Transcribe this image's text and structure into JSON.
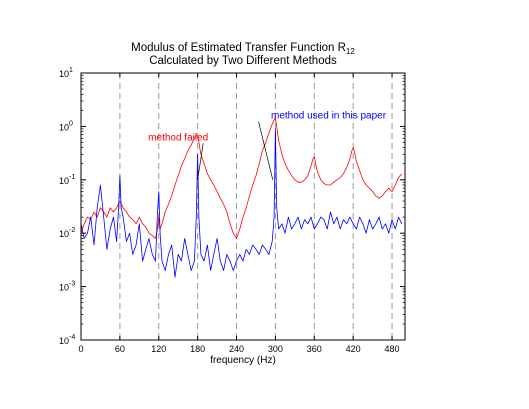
{
  "chart_data": {
    "type": "line",
    "title_line1": "Modulus of Estimated Transfer Function R",
    "title_subscript": "12",
    "title_line2": "Calculated by Two Different Methods",
    "xlabel": "frequency (Hz)",
    "ylabel": "",
    "y_scale": "log",
    "xlim": [
      0,
      500
    ],
    "ylim": [
      0.0001,
      10
    ],
    "x_ticks": [
      0,
      60,
      120,
      180,
      240,
      300,
      360,
      420,
      480
    ],
    "x_tick_labels": [
      "0",
      "60",
      "120",
      "180",
      "240",
      "300",
      "360",
      "420",
      "480"
    ],
    "y_ticks": [
      0.0001,
      0.001,
      0.01,
      0.1,
      1,
      10
    ],
    "y_tick_bases": [
      "10",
      "10",
      "10",
      "10",
      "10",
      "10"
    ],
    "y_tick_exponents": [
      "-4",
      "-3",
      "-2",
      "-1",
      "0",
      "1"
    ],
    "dashed_vertical_lines": [
      60,
      120,
      180,
      240,
      300,
      360,
      420,
      480
    ],
    "series": [
      {
        "name": "method failed",
        "color": "#ff0000",
        "x": [
          0,
          5,
          10,
          15,
          20,
          25,
          30,
          35,
          40,
          45,
          50,
          55,
          60,
          65,
          70,
          75,
          80,
          85,
          90,
          95,
          100,
          105,
          110,
          115,
          118,
          120,
          122,
          125,
          130,
          135,
          140,
          145,
          150,
          155,
          160,
          165,
          170,
          175,
          178,
          180,
          182,
          185,
          190,
          195,
          200,
          205,
          210,
          215,
          220,
          225,
          230,
          235,
          240,
          245,
          250,
          255,
          260,
          265,
          270,
          275,
          280,
          285,
          290,
          295,
          298,
          300,
          302,
          305,
          310,
          315,
          320,
          325,
          330,
          335,
          340,
          345,
          350,
          355,
          358,
          360,
          362,
          365,
          370,
          375,
          380,
          385,
          390,
          395,
          400,
          405,
          410,
          415,
          418,
          420,
          422,
          425,
          430,
          435,
          440,
          445,
          450,
          455,
          460,
          465,
          470,
          475,
          480,
          485,
          490,
          495
        ],
        "y": [
          0.01,
          0.015,
          0.02,
          0.018,
          0.025,
          0.02,
          0.03,
          0.025,
          0.02,
          0.03,
          0.025,
          0.03,
          0.04,
          0.03,
          0.025,
          0.02,
          0.018,
          0.015,
          0.02,
          0.015,
          0.013,
          0.01,
          0.009,
          0.008,
          0.012,
          0.02,
          0.012,
          0.015,
          0.025,
          0.035,
          0.05,
          0.08,
          0.12,
          0.18,
          0.25,
          0.35,
          0.45,
          0.6,
          0.7,
          0.65,
          0.5,
          0.3,
          0.2,
          0.13,
          0.1,
          0.08,
          0.06,
          0.045,
          0.035,
          0.025,
          0.015,
          0.01,
          0.008,
          0.012,
          0.02,
          0.03,
          0.05,
          0.08,
          0.12,
          0.2,
          0.35,
          0.5,
          0.75,
          1.1,
          1.3,
          1.45,
          1.0,
          0.55,
          0.3,
          0.2,
          0.15,
          0.12,
          0.1,
          0.09,
          0.09,
          0.1,
          0.12,
          0.18,
          0.25,
          0.27,
          0.2,
          0.14,
          0.1,
          0.085,
          0.08,
          0.08,
          0.09,
          0.1,
          0.11,
          0.13,
          0.17,
          0.25,
          0.35,
          0.4,
          0.33,
          0.22,
          0.15,
          0.1,
          0.08,
          0.07,
          0.06,
          0.05,
          0.045,
          0.05,
          0.06,
          0.07,
          0.06,
          0.08,
          0.11,
          0.13
        ]
      },
      {
        "name": "method used in this paper",
        "color": "#0000ff",
        "x": [
          0,
          5,
          10,
          15,
          20,
          25,
          30,
          35,
          40,
          45,
          50,
          55,
          58,
          60,
          62,
          65,
          70,
          75,
          80,
          85,
          90,
          95,
          100,
          105,
          110,
          115,
          118,
          120,
          122,
          125,
          130,
          135,
          140,
          145,
          150,
          155,
          160,
          165,
          170,
          175,
          178,
          180,
          182,
          185,
          190,
          195,
          200,
          205,
          210,
          215,
          220,
          225,
          230,
          235,
          240,
          245,
          250,
          255,
          260,
          265,
          270,
          275,
          280,
          285,
          290,
          295,
          298,
          300,
          302,
          305,
          310,
          315,
          320,
          325,
          330,
          335,
          340,
          345,
          350,
          355,
          360,
          365,
          370,
          375,
          380,
          385,
          390,
          395,
          400,
          405,
          410,
          415,
          420,
          425,
          430,
          435,
          440,
          445,
          450,
          455,
          460,
          465,
          470,
          475,
          480,
          485,
          490,
          495
        ],
        "y": [
          0.015,
          0.008,
          0.01,
          0.02,
          0.006,
          0.03,
          0.08,
          0.02,
          0.005,
          0.012,
          0.02,
          0.007,
          0.03,
          0.12,
          0.03,
          0.02,
          0.007,
          0.01,
          0.004,
          0.006,
          0.015,
          0.003,
          0.005,
          0.008,
          0.004,
          0.003,
          0.025,
          0.06,
          0.01,
          0.003,
          0.002,
          0.004,
          0.006,
          0.0015,
          0.004,
          0.003,
          0.008,
          0.004,
          0.002,
          0.003,
          0.02,
          0.3,
          0.02,
          0.004,
          0.003,
          0.006,
          0.002,
          0.004,
          0.008,
          0.003,
          0.002,
          0.004,
          0.003,
          0.002,
          0.003,
          0.004,
          0.003,
          0.005,
          0.004,
          0.006,
          0.005,
          0.004,
          0.006,
          0.005,
          0.004,
          0.007,
          0.02,
          0.9,
          0.03,
          0.012,
          0.015,
          0.01,
          0.02,
          0.012,
          0.015,
          0.02,
          0.012,
          0.018,
          0.015,
          0.02,
          0.012,
          0.015,
          0.02,
          0.018,
          0.012,
          0.025,
          0.015,
          0.02,
          0.012,
          0.018,
          0.015,
          0.02,
          0.015,
          0.012,
          0.02,
          0.015,
          0.01,
          0.018,
          0.012,
          0.015,
          0.02,
          0.012,
          0.015,
          0.01,
          0.018,
          0.012,
          0.02,
          0.015
        ]
      }
    ],
    "annotations": [
      {
        "text": "method failed",
        "color": "#ff0000",
        "x": 150,
        "y": 0.55,
        "arrow_to": [
          180,
          0.1
        ]
      },
      {
        "text": "method used in this paper",
        "color": "#0000ff",
        "x": 382,
        "y": 1.4,
        "arrow_to": [
          296,
          0.1
        ]
      }
    ]
  }
}
